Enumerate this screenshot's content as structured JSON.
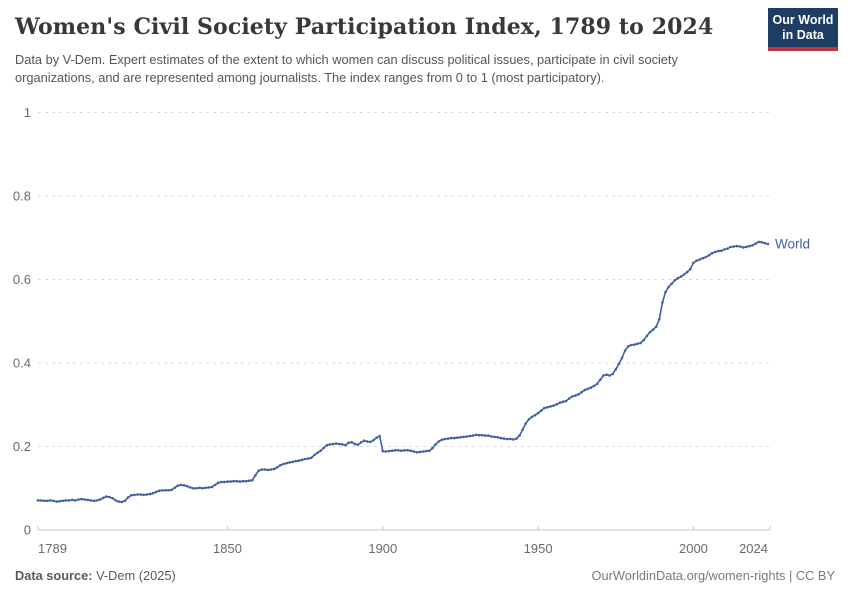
{
  "header": {
    "title": "Women's Civil Society Participation Index, 1789 to 2024",
    "subtitle": "Data by V-Dem. Expert estimates of the extent to which women can discuss political issues, participate in civil society organizations, and are represented among journalists. The index ranges from 0 to 1 (most participatory).",
    "logo": {
      "line1": "Our World",
      "line2": "in Data",
      "bg_color": "#1d3d63",
      "bar_color": "#c0363c"
    }
  },
  "footer": {
    "source_label": "Data source:",
    "source_value": " V-Dem (2025)",
    "credit": "OurWorldinData.org/women-rights | CC BY"
  },
  "chart_data": {
    "type": "line",
    "title": "Women's Civil Society Participation Index, 1789 to 2024",
    "series_label": "World",
    "line_color": "#4060a0",
    "axis_color": "#c9c9c9",
    "grid_color": "#dcdcdc",
    "tick_label_color": "#6b6b6b",
    "x_range": [
      1789,
      2024
    ],
    "y_range": [
      0,
      1
    ],
    "x_ticks": [
      1789,
      1850,
      1900,
      1950,
      2000,
      2024
    ],
    "y_ticks": [
      0,
      0.2,
      0.4,
      0.6,
      0.8,
      1
    ],
    "grid": "dashed-horizontal",
    "legend_position": "end-of-line",
    "start_year": 1789,
    "values": [
      0.071,
      0.071,
      0.07,
      0.07,
      0.071,
      0.07,
      0.068,
      0.069,
      0.07,
      0.071,
      0.071,
      0.072,
      0.071,
      0.073,
      0.074,
      0.073,
      0.072,
      0.071,
      0.07,
      0.071,
      0.073,
      0.077,
      0.08,
      0.079,
      0.076,
      0.071,
      0.068,
      0.067,
      0.07,
      0.078,
      0.083,
      0.084,
      0.085,
      0.085,
      0.084,
      0.085,
      0.086,
      0.088,
      0.091,
      0.094,
      0.095,
      0.095,
      0.095,
      0.096,
      0.101,
      0.106,
      0.108,
      0.107,
      0.105,
      0.102,
      0.1,
      0.1,
      0.101,
      0.1,
      0.101,
      0.102,
      0.103,
      0.108,
      0.113,
      0.115,
      0.115,
      0.116,
      0.116,
      0.117,
      0.117,
      0.116,
      0.117,
      0.117,
      0.118,
      0.119,
      0.131,
      0.142,
      0.145,
      0.145,
      0.144,
      0.145,
      0.146,
      0.15,
      0.155,
      0.158,
      0.16,
      0.162,
      0.163,
      0.165,
      0.166,
      0.168,
      0.17,
      0.171,
      0.173,
      0.18,
      0.185,
      0.19,
      0.197,
      0.203,
      0.205,
      0.206,
      0.207,
      0.206,
      0.205,
      0.203,
      0.209,
      0.21,
      0.206,
      0.204,
      0.21,
      0.214,
      0.212,
      0.211,
      0.215,
      0.221,
      0.225,
      0.189,
      0.188,
      0.189,
      0.19,
      0.191,
      0.191,
      0.19,
      0.191,
      0.191,
      0.19,
      0.188,
      0.186,
      0.187,
      0.188,
      0.189,
      0.19,
      0.196,
      0.205,
      0.212,
      0.216,
      0.218,
      0.219,
      0.22,
      0.22,
      0.221,
      0.222,
      0.223,
      0.224,
      0.225,
      0.226,
      0.228,
      0.227,
      0.227,
      0.226,
      0.226,
      0.224,
      0.223,
      0.222,
      0.22,
      0.219,
      0.218,
      0.218,
      0.217,
      0.219,
      0.226,
      0.24,
      0.255,
      0.265,
      0.271,
      0.275,
      0.28,
      0.286,
      0.292,
      0.294,
      0.296,
      0.298,
      0.301,
      0.305,
      0.307,
      0.309,
      0.315,
      0.32,
      0.322,
      0.325,
      0.33,
      0.335,
      0.338,
      0.341,
      0.345,
      0.35,
      0.36,
      0.37,
      0.372,
      0.37,
      0.374,
      0.385,
      0.398,
      0.412,
      0.43,
      0.44,
      0.443,
      0.444,
      0.446,
      0.448,
      0.455,
      0.465,
      0.474,
      0.48,
      0.487,
      0.505,
      0.545,
      0.57,
      0.582,
      0.59,
      0.598,
      0.603,
      0.607,
      0.612,
      0.618,
      0.625,
      0.64,
      0.645,
      0.648,
      0.651,
      0.654,
      0.658,
      0.663,
      0.666,
      0.668,
      0.669,
      0.672,
      0.674,
      0.678,
      0.679,
      0.68,
      0.679,
      0.677,
      0.678,
      0.68,
      0.682,
      0.686,
      0.69,
      0.689,
      0.687,
      0.685
    ]
  }
}
